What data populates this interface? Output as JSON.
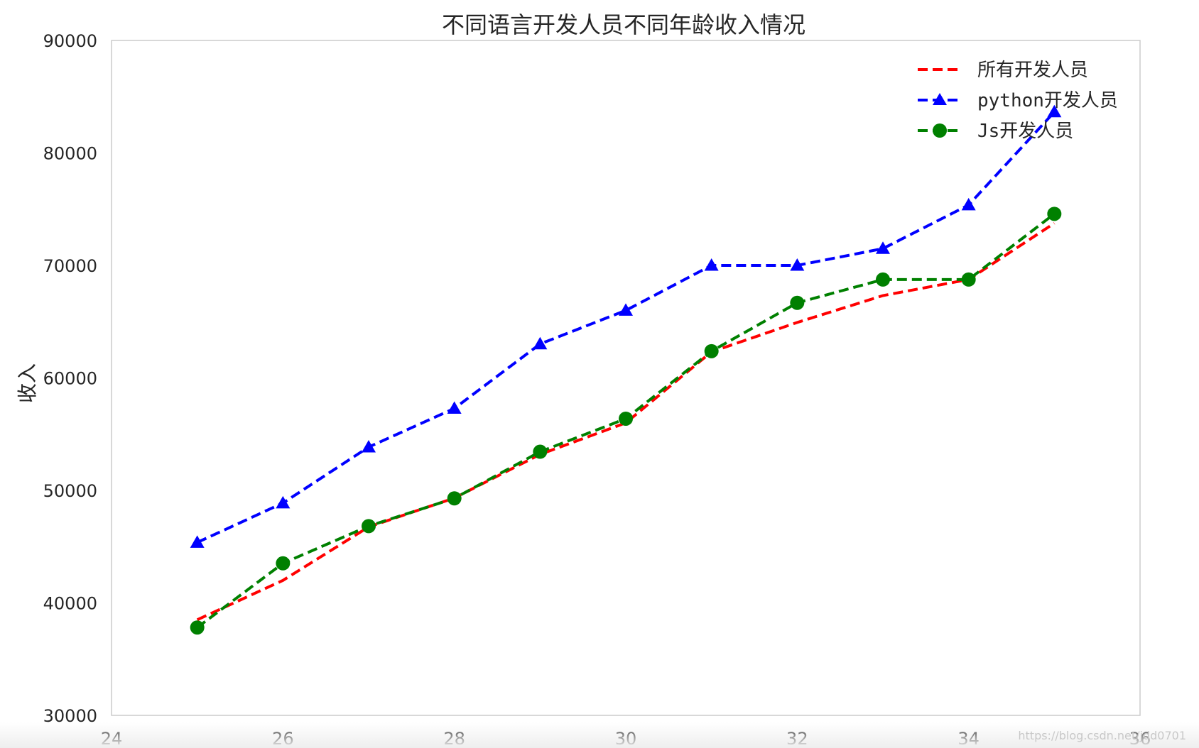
{
  "chart_data": {
    "type": "line",
    "title": "不同语言开发人员不同年龄收入情况",
    "xlabel": "",
    "ylabel": "收入",
    "xlim": [
      24,
      36
    ],
    "ylim": [
      30000,
      90000
    ],
    "xticks": [
      24,
      26,
      28,
      30,
      32,
      34,
      36
    ],
    "yticks": [
      30000,
      40000,
      50000,
      60000,
      70000,
      80000,
      90000
    ],
    "grid": false,
    "legend_position": "top-right",
    "x": [
      25,
      26,
      27,
      28,
      29,
      30,
      31,
      32,
      33,
      34,
      35
    ],
    "series": [
      {
        "name": "所有开发人员",
        "color": "#ff0000",
        "marker": "none",
        "linestyle": "dashed",
        "values": [
          38496,
          42000,
          46752,
          49320,
          53200,
          56000,
          62316,
          64928,
          67317,
          68748,
          73752
        ]
      },
      {
        "name": "python开发人员",
        "color": "#0000ff",
        "marker": "triangle",
        "linestyle": "dashed",
        "values": [
          45372,
          48876,
          53850,
          57287,
          63016,
          65998,
          70003,
          70000,
          71496,
          75370,
          83640
        ]
      },
      {
        "name": "Js开发人员",
        "color": "#008000",
        "marker": "circle",
        "linestyle": "dashed",
        "values": [
          37810,
          43515,
          46823,
          49293,
          53437,
          56373,
          62375,
          66674,
          68745,
          68746,
          74583
        ]
      }
    ]
  },
  "watermark": "https://blog.csdn.net/jdd0701"
}
